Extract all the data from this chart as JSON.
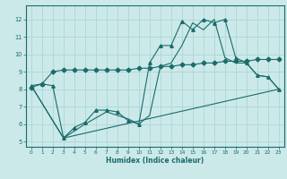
{
  "xlabel": "Humidex (Indice chaleur)",
  "xlim": [
    -0.5,
    23.5
  ],
  "ylim": [
    4.7,
    12.8
  ],
  "yticks": [
    5,
    6,
    7,
    8,
    9,
    10,
    11,
    12
  ],
  "xticks": [
    0,
    1,
    2,
    3,
    4,
    5,
    6,
    7,
    8,
    9,
    10,
    11,
    12,
    13,
    14,
    15,
    16,
    17,
    18,
    19,
    20,
    21,
    22,
    23
  ],
  "background_color": "#cce9e9",
  "grid_color": "#b0d8d8",
  "line_color": "#1a6b6b",
  "series": [
    {
      "x": [
        0,
        1,
        2,
        3,
        4,
        5,
        6,
        7,
        8,
        9,
        10,
        11,
        12,
        13,
        14,
        15,
        16,
        17,
        18,
        19,
        20,
        21,
        22,
        23
      ],
      "y": [
        8.1,
        8.3,
        9.0,
        9.1,
        9.1,
        9.1,
        9.1,
        9.1,
        9.1,
        9.1,
        9.2,
        9.2,
        9.3,
        9.3,
        9.4,
        9.4,
        9.5,
        9.5,
        9.6,
        9.6,
        9.6,
        9.7,
        9.7,
        9.7
      ],
      "marker": "D",
      "markersize": 2.5
    },
    {
      "x": [
        0,
        1,
        2,
        3,
        4,
        5,
        6,
        7,
        8,
        9,
        10,
        11,
        12,
        13,
        14,
        15,
        16,
        17,
        18,
        19,
        20,
        21,
        22,
        23
      ],
      "y": [
        8.2,
        8.3,
        8.2,
        5.2,
        5.8,
        6.1,
        6.8,
        6.8,
        6.7,
        6.2,
        6.0,
        9.5,
        10.5,
        10.5,
        11.9,
        11.4,
        12.0,
        11.8,
        12.0,
        9.8,
        9.5,
        8.8,
        8.7,
        8.0
      ],
      "marker": "^",
      "markersize": 2.5
    },
    {
      "x": [
        0,
        3,
        5,
        7,
        9,
        10,
        11,
        12,
        13,
        14,
        15,
        16,
        17,
        18,
        19,
        20,
        21,
        22,
        23
      ],
      "y": [
        8.2,
        5.2,
        6.0,
        6.7,
        6.3,
        6.0,
        6.5,
        9.3,
        9.5,
        10.5,
        11.8,
        11.4,
        12.0,
        9.8,
        9.5,
        9.5,
        8.8,
        8.7,
        8.0
      ],
      "marker": null,
      "markersize": 0
    },
    {
      "x": [
        0,
        3,
        23
      ],
      "y": [
        8.2,
        5.2,
        8.0
      ],
      "marker": null,
      "markersize": 0
    }
  ]
}
